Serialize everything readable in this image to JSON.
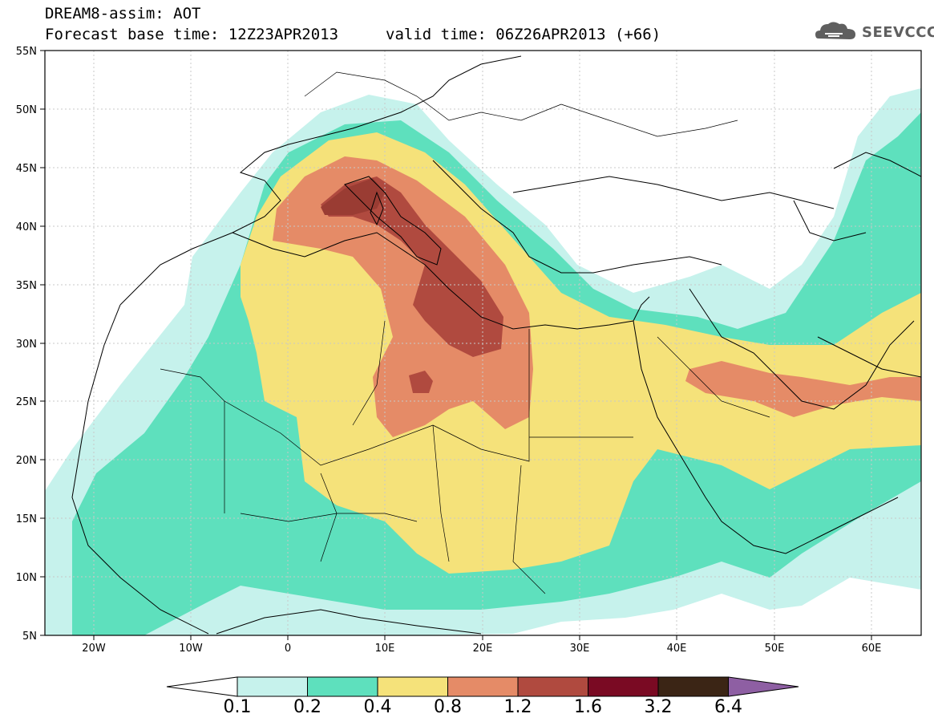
{
  "header": {
    "title_line1": "DREAM8-assim: AOT",
    "base_time_label": "Forecast base time: 12Z23APR2013",
    "valid_time_label": "valid time: 06Z26APR2013 (+66)"
  },
  "logo": {
    "text": "SEEVCCC",
    "icon": "cloud-icon"
  },
  "map": {
    "lon_labels": [
      "20W",
      "10W",
      "0",
      "10E",
      "20E",
      "30E",
      "40E",
      "50E",
      "60E"
    ],
    "lat_labels": [
      "55N",
      "50N",
      "45N",
      "40N",
      "35N",
      "30N",
      "25N",
      "20N",
      "15N",
      "10N",
      "5N"
    ],
    "lon_range": [
      -25,
      65
    ],
    "lat_range": [
      5,
      55
    ],
    "grid": true,
    "variable": "Aerosol Optical Thickness"
  },
  "colorbar": {
    "labels": [
      "0.1",
      "0.2",
      "0.4",
      "0.8",
      "1.2",
      "1.6",
      "3.2",
      "6.4"
    ],
    "colors": [
      "#c6f2ec",
      "#5ee0bd",
      "#f5e27a",
      "#e58b67",
      "#b04a3f",
      "#7a0a23",
      "#3b2515",
      "#8e5fa3"
    ]
  }
}
